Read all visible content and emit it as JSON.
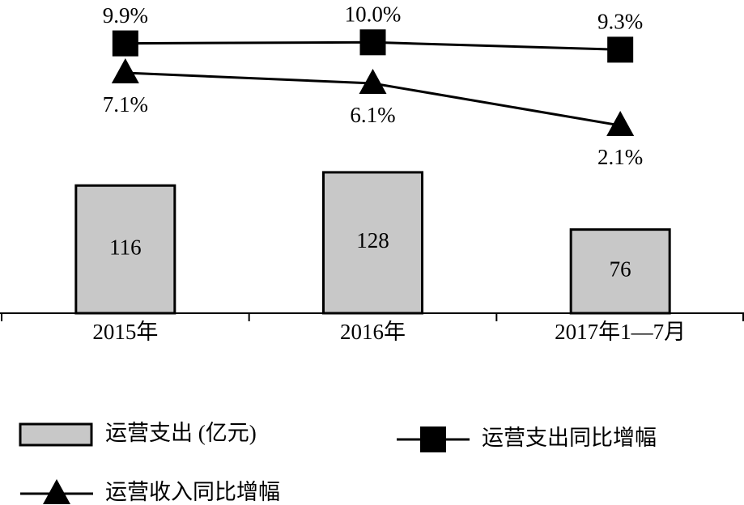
{
  "chart_data": {
    "type": "bar",
    "categories": [
      "2015年",
      "2016年",
      "2017年1—7月"
    ],
    "ylim": [
      0,
      140
    ],
    "y2lim": [
      0,
      12
    ],
    "series": [
      {
        "name": "运营支出 (亿元)",
        "type": "bar",
        "color": "#c8c8c8",
        "values": [
          116,
          128,
          76
        ]
      },
      {
        "name": "运营支出同比增幅",
        "type": "line",
        "axis": "y2",
        "marker": "square",
        "color": "#000000",
        "values": [
          9.9,
          10.0,
          9.3
        ],
        "value_labels": [
          "9.9%",
          "10.0%",
          "9.3%"
        ],
        "label_position": "above"
      },
      {
        "name": "运营收入同比增幅",
        "type": "line",
        "axis": "y2",
        "marker": "triangle",
        "color": "#000000",
        "values": [
          7.1,
          6.1,
          2.1
        ],
        "value_labels": [
          "7.1%",
          "6.1%",
          "2.1%"
        ],
        "label_position": "below"
      }
    ]
  }
}
